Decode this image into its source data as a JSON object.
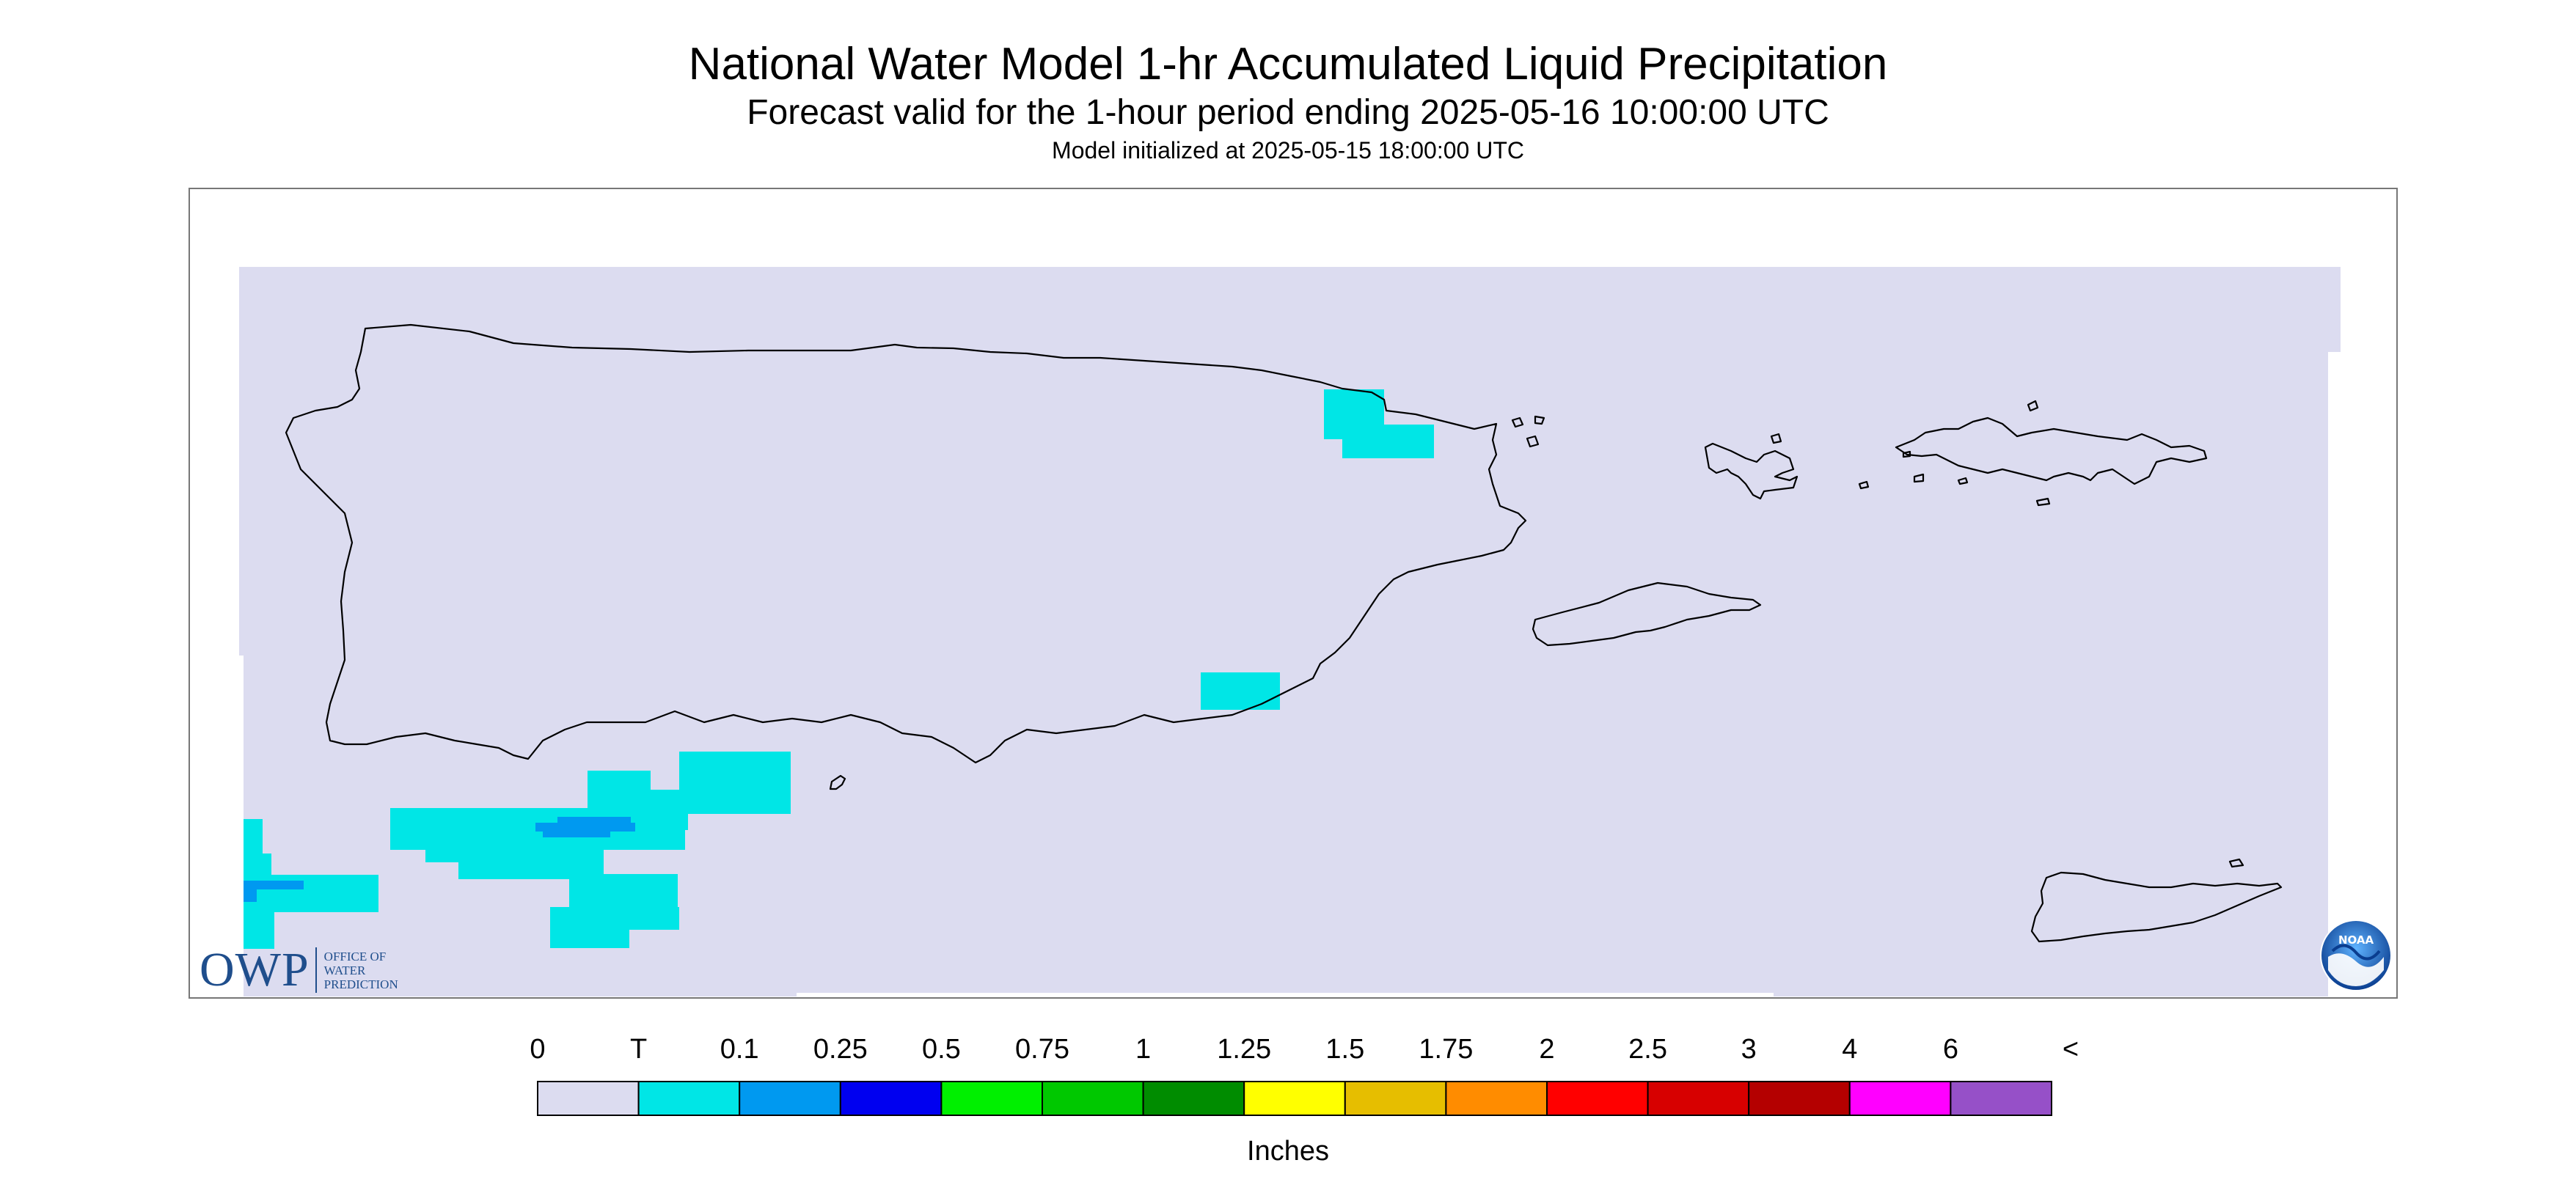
{
  "header": {
    "title": "National Water Model 1-hr Accumulated Liquid Precipitation",
    "subtitle": "Forecast valid for the 1-hour period ending 2025-05-16 10:00:00 UTC",
    "init": "Model initialized at 2025-05-15 18:00:00 UTC"
  },
  "map": {
    "background_color": "#dcdcf0",
    "coastline_color": "#000000",
    "precip_areas": [
      {
        "category": "T",
        "color": "#00e6e6"
      },
      {
        "category": "0.1",
        "color": "#0099f0"
      }
    ]
  },
  "legend": {
    "units": "Inches",
    "labels": [
      "0",
      "T",
      "0.1",
      "0.25",
      "0.5",
      "0.75",
      "1",
      "1.25",
      "1.5",
      "1.75",
      "2",
      "2.5",
      "3",
      "4",
      "6",
      "<"
    ],
    "colors": [
      "#dcdcf0",
      "#00e6e6",
      "#0099f0",
      "#0000f0",
      "#00f000",
      "#00c800",
      "#008c00",
      "#ffff00",
      "#e6be00",
      "#ff8c00",
      "#ff0000",
      "#d70000",
      "#b40000",
      "#ff00ff",
      "#9650c8"
    ]
  },
  "logos": {
    "owp": {
      "mark": "OWP",
      "line1": "Office of",
      "line2": "Water",
      "line3": "Prediction"
    },
    "noaa": {
      "text": "NOAA",
      "icon": "noaa-emblem-icon"
    }
  }
}
